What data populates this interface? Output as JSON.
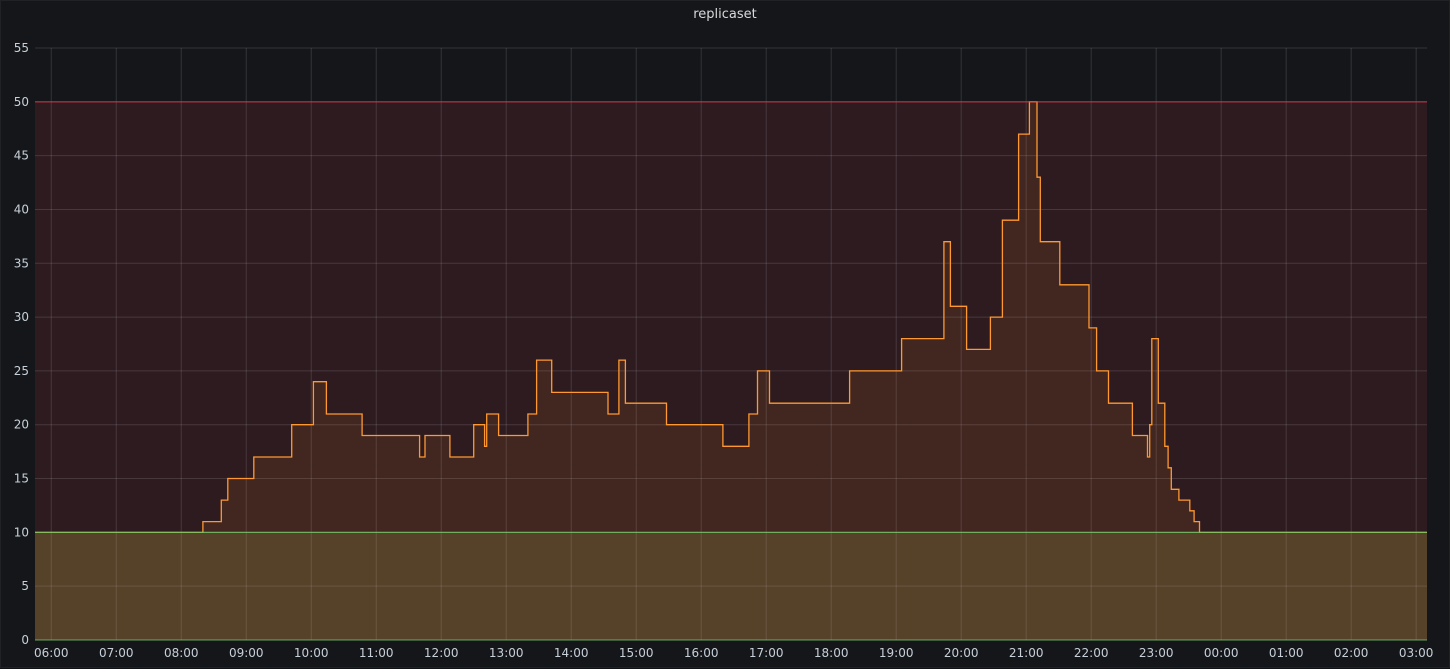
{
  "chart_data": {
    "type": "area",
    "title": "replicaset",
    "xlabel": "",
    "ylabel": "",
    "x_ticks": [
      "06:00",
      "07:00",
      "08:00",
      "09:00",
      "10:00",
      "11:00",
      "12:00",
      "13:00",
      "14:00",
      "15:00",
      "16:00",
      "17:00",
      "18:00",
      "19:00",
      "20:00",
      "21:00",
      "22:00",
      "23:00",
      "00:00",
      "01:00",
      "02:00",
      "03:00"
    ],
    "xlim": [
      "05:45",
      "03:10"
    ],
    "y_ticks": [
      0,
      5,
      10,
      15,
      20,
      25,
      30,
      35,
      40,
      45,
      50,
      55
    ],
    "ylim": [
      0,
      55
    ],
    "grid": true,
    "thresholds": [
      {
        "value": 50,
        "color": "#e02f44",
        "fill": "#2d1b20"
      },
      {
        "value": 10,
        "color": "#73bf69",
        "fill": "#433829"
      }
    ],
    "series": [
      {
        "color": "#ff9830",
        "interpolation": "step",
        "points": [
          [
            "05:45",
            10
          ],
          [
            "08:20",
            10
          ],
          [
            "08:20",
            11
          ],
          [
            "08:37",
            11
          ],
          [
            "08:37",
            13
          ],
          [
            "08:43",
            13
          ],
          [
            "08:43",
            15
          ],
          [
            "09:07",
            15
          ],
          [
            "09:07",
            17
          ],
          [
            "09:42",
            17
          ],
          [
            "09:42",
            20
          ],
          [
            "10:02",
            20
          ],
          [
            "10:02",
            24
          ],
          [
            "10:14",
            24
          ],
          [
            "10:14",
            21
          ],
          [
            "10:47",
            21
          ],
          [
            "10:47",
            19
          ],
          [
            "11:40",
            19
          ],
          [
            "11:40",
            17
          ],
          [
            "11:45",
            17
          ],
          [
            "11:45",
            19
          ],
          [
            "12:08",
            19
          ],
          [
            "12:08",
            17
          ],
          [
            "12:30",
            17
          ],
          [
            "12:30",
            20
          ],
          [
            "12:40",
            20
          ],
          [
            "12:40",
            18
          ],
          [
            "12:42",
            18
          ],
          [
            "12:42",
            21
          ],
          [
            "12:53",
            21
          ],
          [
            "12:53",
            19
          ],
          [
            "13:20",
            19
          ],
          [
            "13:20",
            21
          ],
          [
            "13:28",
            21
          ],
          [
            "13:28",
            26
          ],
          [
            "13:42",
            26
          ],
          [
            "13:42",
            23
          ],
          [
            "14:34",
            23
          ],
          [
            "14:34",
            21
          ],
          [
            "14:44",
            21
          ],
          [
            "14:44",
            26
          ],
          [
            "14:50",
            26
          ],
          [
            "14:50",
            22
          ],
          [
            "15:28",
            22
          ],
          [
            "15:28",
            20
          ],
          [
            "16:20",
            20
          ],
          [
            "16:20",
            18
          ],
          [
            "16:44",
            18
          ],
          [
            "16:44",
            21
          ],
          [
            "16:52",
            21
          ],
          [
            "16:52",
            25
          ],
          [
            "17:03",
            25
          ],
          [
            "17:03",
            22
          ],
          [
            "18:17",
            22
          ],
          [
            "18:17",
            25
          ],
          [
            "19:05",
            25
          ],
          [
            "19:05",
            28
          ],
          [
            "19:44",
            28
          ],
          [
            "19:44",
            37
          ],
          [
            "19:50",
            37
          ],
          [
            "19:50",
            31
          ],
          [
            "20:05",
            31
          ],
          [
            "20:05",
            27
          ],
          [
            "20:27",
            27
          ],
          [
            "20:27",
            30
          ],
          [
            "20:38",
            30
          ],
          [
            "20:38",
            39
          ],
          [
            "20:53",
            39
          ],
          [
            "20:53",
            47
          ],
          [
            "21:03",
            47
          ],
          [
            "21:03",
            50
          ],
          [
            "21:10",
            50
          ],
          [
            "21:10",
            43
          ],
          [
            "21:13",
            43
          ],
          [
            "21:13",
            37
          ],
          [
            "21:31",
            37
          ],
          [
            "21:31",
            33
          ],
          [
            "21:58",
            33
          ],
          [
            "21:58",
            29
          ],
          [
            "22:05",
            29
          ],
          [
            "22:05",
            25
          ],
          [
            "22:16",
            25
          ],
          [
            "22:16",
            22
          ],
          [
            "22:38",
            22
          ],
          [
            "22:38",
            19
          ],
          [
            "22:52",
            19
          ],
          [
            "22:52",
            17
          ],
          [
            "22:54",
            17
          ],
          [
            "22:54",
            20
          ],
          [
            "22:56",
            20
          ],
          [
            "22:56",
            28
          ],
          [
            "23:02",
            28
          ],
          [
            "23:02",
            22
          ],
          [
            "23:08",
            22
          ],
          [
            "23:08",
            18
          ],
          [
            "23:11",
            18
          ],
          [
            "23:11",
            16
          ],
          [
            "23:14",
            16
          ],
          [
            "23:14",
            14
          ],
          [
            "23:21",
            14
          ],
          [
            "23:21",
            13
          ],
          [
            "23:31",
            13
          ],
          [
            "23:31",
            12
          ],
          [
            "23:35",
            12
          ],
          [
            "23:35",
            11
          ],
          [
            "23:40",
            11
          ],
          [
            "23:40",
            10
          ],
          [
            "03:10",
            10
          ]
        ]
      }
    ]
  }
}
